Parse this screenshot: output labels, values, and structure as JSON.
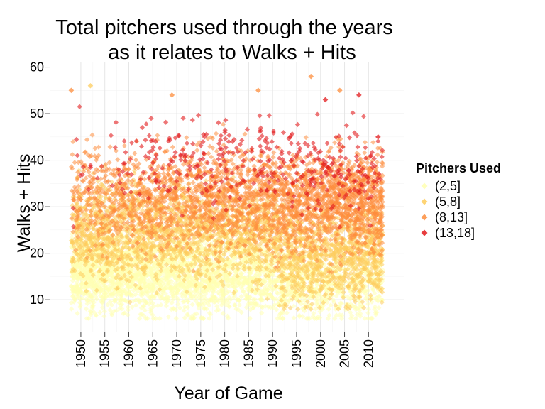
{
  "chart_data": {
    "type": "scatter",
    "title": [
      "Total pitchers used through the years",
      "as it relates to Walks + Hits"
    ],
    "xlabel": "Year of Game",
    "ylabel": "Walks + Hits",
    "xlim": [
      1943.5,
      2017.5
    ],
    "ylim": [
      3,
      61
    ],
    "x_ticks": [
      1950,
      1955,
      1960,
      1965,
      1970,
      1975,
      1980,
      1985,
      1990,
      1995,
      2000,
      2005,
      2010
    ],
    "y_ticks": [
      10,
      20,
      30,
      40,
      50,
      60
    ],
    "x_data_range": [
      1948,
      2013
    ],
    "grid": true,
    "point_shape": "diamond",
    "legend": {
      "title": "Pitchers Used",
      "position": "right",
      "entries": [
        {
          "label": "(2,5]",
          "color": "#ffffb2"
        },
        {
          "label": "(5,8]",
          "color": "#fecc5c"
        },
        {
          "label": "(8,13]",
          "color": "#fd8d3c"
        },
        {
          "label": "(13,18]",
          "color": "#e31a1c"
        }
      ]
    },
    "series": [
      {
        "name": "(2,5]",
        "color": "#ffffb2",
        "approx_y_range": [
          6,
          40
        ],
        "typical_y_by_era": [
          {
            "era": "1948-1990",
            "typical": 16
          },
          {
            "era": "1991-2013",
            "typical": 14
          }
        ]
      },
      {
        "name": "(5,8]",
        "color": "#fecc5c",
        "approx_y_range": [
          8,
          56
        ],
        "typical_y_by_era": [
          {
            "era": "1948-1990",
            "typical": 25
          },
          {
            "era": "1991-2013",
            "typical": 20
          }
        ]
      },
      {
        "name": "(8,13]",
        "color": "#fd8d3c",
        "approx_y_range": [
          12,
          58
        ],
        "typical_y_by_era": [
          {
            "era": "1948-1990",
            "typical": 32
          },
          {
            "era": "1991-2013",
            "typical": 31
          }
        ]
      },
      {
        "name": "(13,18]",
        "color": "#e31a1c",
        "approx_y_range": [
          20,
          54
        ],
        "typical_y_by_era": [
          {
            "era": "1948-1990",
            "typical": 40
          },
          {
            "era": "1991-2013",
            "typical": 38
          }
        ]
      }
    ],
    "highlighted_points": [
      {
        "x": 1948,
        "y": 55,
        "group": "(8,13]"
      },
      {
        "x": 1952,
        "y": 56,
        "group": "(5,8]"
      },
      {
        "x": 1969,
        "y": 54,
        "group": "(8,13]"
      },
      {
        "x": 1987,
        "y": 55,
        "group": "(8,13]"
      },
      {
        "x": 1998,
        "y": 58,
        "group": "(8,13]"
      },
      {
        "x": 2004,
        "y": 55,
        "group": "(8,13]"
      },
      {
        "x": 2008,
        "y": 54,
        "group": "(13,18]"
      },
      {
        "x": 2001,
        "y": 53,
        "group": "(13,18]"
      },
      {
        "x": 2012,
        "y": 45,
        "group": "(13,18]"
      }
    ]
  }
}
